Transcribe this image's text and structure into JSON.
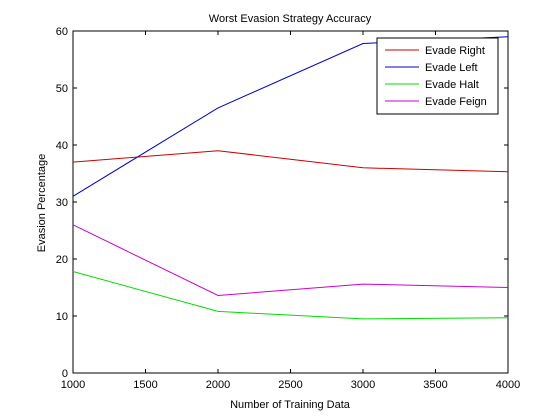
{
  "chart_data": {
    "type": "line",
    "title": "Worst Evasion Strategy Accuracy",
    "xlabel": "Number of Training Data",
    "ylabel": "Evasion Percentage",
    "xlim": [
      1000,
      4000
    ],
    "ylim": [
      0,
      60
    ],
    "xticks": [
      "1000",
      "1500",
      "2000",
      "2500",
      "3000",
      "3500",
      "4000"
    ],
    "yticks": [
      "0",
      "10",
      "20",
      "30",
      "40",
      "50",
      "60"
    ],
    "x": [
      1000,
      2000,
      3000,
      4000
    ],
    "grid": false,
    "legend_position": "top-right",
    "series": [
      {
        "name": "Evade Right",
        "color": "#cc0000",
        "values": [
          37,
          39,
          36,
          35.3
        ]
      },
      {
        "name": "Evade Left",
        "color": "#0000cc",
        "values": [
          31,
          46.5,
          57.8,
          59
        ]
      },
      {
        "name": "Evade Halt",
        "color": "#00dd00",
        "values": [
          17.8,
          10.8,
          9.5,
          9.7
        ]
      },
      {
        "name": "Evade Feign",
        "color": "#cc00cc",
        "values": [
          26,
          13.6,
          15.6,
          15
        ]
      }
    ]
  }
}
